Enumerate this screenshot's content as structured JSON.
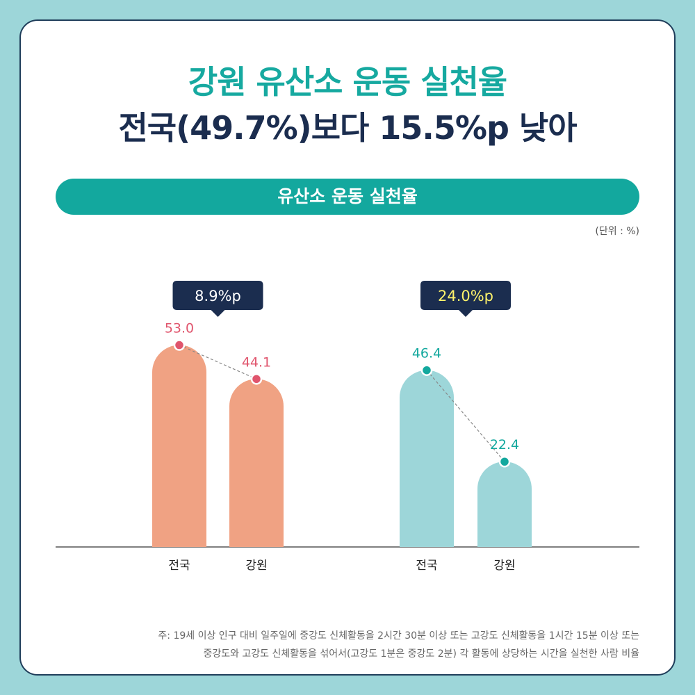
{
  "header": {
    "title_line1": "강원 유산소 운동 실천율",
    "title_line2": "전국(49.7%)보다 15.5%p 낮아"
  },
  "chart_header": {
    "label": "유산소 운동 실천율",
    "unit": "(단위 : %)"
  },
  "chart_data": {
    "type": "bar",
    "title": "유산소 운동 실천율",
    "groups": [
      {
        "categories": [
          "전국",
          "강원"
        ],
        "values": [
          53.0,
          44.1
        ],
        "value_labels": [
          "53.0",
          "44.1"
        ],
        "difference_label": "8.9%p",
        "bar_color": "#f0a283",
        "point_color": "#e0556d",
        "label_color": "#e0556d",
        "diff_text_color": "#ffffff"
      },
      {
        "categories": [
          "전국",
          "강원"
        ],
        "values": [
          46.4,
          22.4
        ],
        "value_labels": [
          "46.4",
          "22.4"
        ],
        "difference_label": "24.0%p",
        "bar_color": "#9dd6d9",
        "point_color": "#13a89e",
        "label_color": "#13a89e",
        "diff_text_color": "#fff36b"
      }
    ]
  },
  "footnote": {
    "line1": "주: 19세 이상 인구 대비 일주일에 중강도 신체활동을 2시간 30분 이상 또는 고강도 신체활동을 1시간 15분 이상 또는",
    "line2": "중강도와 고강도 신체활동을 섞어서(고강도 1분은 중강도 2분) 각 활동에 상당하는 시간을 실천한 사람 비율"
  },
  "colors": {
    "background": "#9dd6d9",
    "accent": "#13a89e",
    "title_dark": "#1b2d4f",
    "callout_bg": "#1b2d4f"
  }
}
